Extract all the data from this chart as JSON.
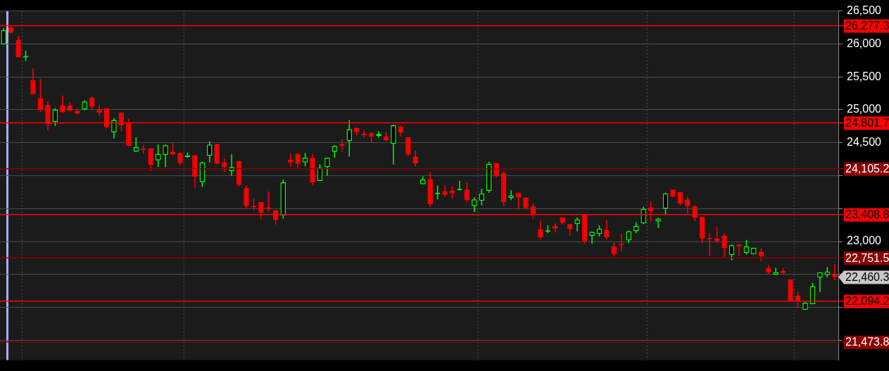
{
  "chart_data": {
    "type": "candlestick",
    "categories": [
      null,
      null,
      null,
      null,
      null,
      null,
      null,
      null,
      null,
      null,
      null,
      null,
      null,
      null,
      null,
      null,
      null,
      null,
      null,
      null,
      null,
      null,
      null,
      null,
      null,
      null,
      null,
      null,
      null,
      null,
      null,
      null,
      null,
      null,
      null,
      null,
      null,
      null,
      null,
      null,
      null,
      null,
      null,
      null,
      null,
      null,
      null,
      null,
      null,
      null,
      null,
      null,
      null,
      null,
      null,
      null,
      null,
      null,
      null,
      null,
      null,
      null,
      null,
      null,
      null,
      null,
      null,
      null,
      null,
      null,
      null,
      null,
      null,
      null,
      null,
      null,
      null,
      null,
      null,
      null,
      null,
      null,
      null,
      null,
      null,
      null,
      null,
      null,
      null,
      null,
      null,
      null,
      null,
      null,
      null,
      null,
      null,
      null,
      null,
      null,
      null,
      null,
      null,
      null,
      null,
      null,
      null,
      null,
      null,
      null,
      null,
      null,
      null,
      null
    ],
    "ohlc": [
      [
        25990,
        26241,
        25990,
        26211
      ],
      [
        26251,
        26274,
        26154,
        26171
      ],
      [
        26060,
        26121,
        25792,
        25799
      ],
      [
        25795,
        25900,
        25740,
        25800
      ],
      [
        25447,
        25628,
        25226,
        25236
      ],
      [
        25176,
        25467,
        24965,
        24995
      ],
      [
        25075,
        25126,
        24683,
        24784
      ],
      [
        24814,
        25025,
        24754,
        25005
      ],
      [
        25065,
        25216,
        24945,
        24965
      ],
      [
        25065,
        25116,
        24975,
        24985
      ],
      [
        24985,
        25015,
        24925,
        24945
      ],
      [
        25005,
        25146,
        24995,
        25126
      ],
      [
        25186,
        25196,
        25005,
        25045
      ],
      [
        25005,
        25075,
        24905,
        24955
      ],
      [
        25025,
        25025,
        24724,
        24734
      ],
      [
        24656,
        24874,
        24563,
        24844
      ],
      [
        24955,
        24965,
        24673,
        24764
      ],
      [
        24794,
        24864,
        24442,
        24452
      ],
      [
        24362,
        24583,
        24362,
        24432
      ],
      [
        24412,
        24462,
        24332,
        24392
      ],
      [
        24412,
        24422,
        24070,
        24161
      ],
      [
        24231,
        24472,
        24131,
        24332
      ],
      [
        24312,
        24472,
        24131,
        24462
      ],
      [
        24362,
        24492,
        24302,
        24322
      ],
      [
        24342,
        24352,
        24161,
        24191
      ],
      [
        24282,
        24352,
        24271,
        24292
      ],
      [
        24312,
        24312,
        23809,
        23980
      ],
      [
        23900,
        24211,
        23829,
        24201
      ],
      [
        24301,
        24523,
        24201,
        24472
      ],
      [
        24482,
        24482,
        24171,
        24181
      ],
      [
        24201,
        24261,
        24060,
        24131
      ],
      [
        24070,
        24322,
        24000,
        24131
      ],
      [
        24221,
        24221,
        23829,
        23859
      ],
      [
        23809,
        23849,
        23498,
        23538
      ],
      [
        23528,
        23658,
        23477,
        23518
      ],
      [
        23598,
        23598,
        23337,
        23437
      ],
      [
        23518,
        23759,
        23457,
        23498
      ],
      [
        23477,
        23477,
        23256,
        23327
      ],
      [
        23397,
        23940,
        23347,
        23899
      ],
      [
        24241,
        24332,
        24131,
        24201
      ],
      [
        24332,
        24332,
        24121,
        24181
      ],
      [
        24201,
        24342,
        24141,
        24271
      ],
      [
        24271,
        24332,
        23859,
        23899
      ],
      [
        23920,
        24171,
        23920,
        24121
      ],
      [
        24131,
        24271,
        24000,
        24271
      ],
      [
        24362,
        24462,
        24271,
        24452
      ],
      [
        24482,
        24553,
        24362,
        24452
      ],
      [
        24523,
        24844,
        24291,
        24704
      ],
      [
        24724,
        24734,
        24613,
        24663
      ],
      [
        24623,
        24694,
        24573,
        24613
      ],
      [
        24643,
        24663,
        24503,
        24593
      ],
      [
        24603,
        24673,
        24573,
        24633
      ],
      [
        24593,
        24663,
        24523,
        24533
      ],
      [
        24482,
        24774,
        24171,
        24764
      ],
      [
        24744,
        24764,
        24593,
        24653
      ],
      [
        24583,
        24583,
        24291,
        24322
      ],
      [
        24291,
        24382,
        24141,
        24181
      ],
      [
        23869,
        23990,
        23869,
        23940
      ],
      [
        23950,
        24050,
        23528,
        23568
      ],
      [
        23719,
        23849,
        23638,
        23729
      ],
      [
        23759,
        23849,
        23678,
        23709
      ],
      [
        23769,
        23839,
        23648,
        23729
      ],
      [
        23779,
        23920,
        23779,
        23789
      ],
      [
        23789,
        23899,
        23588,
        23628
      ],
      [
        23538,
        23668,
        23447,
        23638
      ],
      [
        23618,
        23799,
        23548,
        23729
      ],
      [
        23769,
        24211,
        23739,
        24181
      ],
      [
        24191,
        24191,
        23970,
        23990
      ],
      [
        24040,
        24070,
        23538,
        23598
      ],
      [
        23658,
        23779,
        23628,
        23698
      ],
      [
        23739,
        23739,
        23487,
        23668
      ],
      [
        23668,
        23668,
        23487,
        23508
      ],
      [
        23538,
        23578,
        23337,
        23407
      ],
      [
        23186,
        23317,
        23035,
        23065
      ],
      [
        23146,
        23246,
        23126,
        23156
      ],
      [
        23236,
        23276,
        23136,
        23196
      ],
      [
        23367,
        23367,
        23256,
        23286
      ],
      [
        23266,
        23266,
        23085,
        23186
      ],
      [
        23266,
        23367,
        23156,
        23337
      ],
      [
        23407,
        23407,
        22965,
        23005
      ],
      [
        23085,
        23146,
        22965,
        23146
      ],
      [
        23116,
        23246,
        23075,
        23196
      ],
      [
        23176,
        23327,
        23035,
        23065
      ],
      [
        22925,
        22985,
        22774,
        22804
      ],
      [
        22955,
        23116,
        22844,
        22945
      ],
      [
        23015,
        23166,
        22975,
        23156
      ],
      [
        23156,
        23296,
        23126,
        23236
      ],
      [
        23276,
        23528,
        23266,
        23497
      ],
      [
        23518,
        23608,
        23306,
        23457
      ],
      [
        23306,
        23357,
        23206,
        23347
      ],
      [
        23498,
        23739,
        23407,
        23729
      ],
      [
        23789,
        23789,
        23668,
        23678
      ],
      [
        23749,
        23749,
        23548,
        23578
      ],
      [
        23638,
        23678,
        23427,
        23538
      ],
      [
        23538,
        23548,
        23306,
        23357
      ],
      [
        23377,
        23377,
        22975,
        23045
      ],
      [
        23045,
        23126,
        22784,
        23035
      ],
      [
        23045,
        23216,
        22975,
        23005
      ],
      [
        23085,
        23116,
        22764,
        22905
      ],
      [
        22794,
        22955,
        22714,
        22945
      ],
      [
        22955,
        22965,
        22784,
        22925
      ],
      [
        22824,
        23025,
        22804,
        22925
      ],
      [
        22804,
        22905,
        22804,
        22905
      ],
      [
        22844,
        22894,
        22704,
        22774
      ],
      [
        22593,
        22643,
        22503,
        22533
      ],
      [
        22493,
        22603,
        22493,
        22533
      ],
      [
        22553,
        22593,
        22493,
        22523
      ],
      [
        22422,
        22422,
        22091,
        22101
      ],
      [
        22181,
        22241,
        21990,
        22091
      ],
      [
        21960,
        22080,
        21960,
        22070
      ],
      [
        22050,
        22372,
        22050,
        22322
      ],
      [
        22452,
        22533,
        22231,
        22533
      ],
      [
        22493,
        22613,
        22452,
        22543
      ],
      [
        22503,
        22653,
        22412,
        22460
      ]
    ],
    "ylim": [
      21200,
      26500
    ],
    "yticks": [
      {
        "value": 21500,
        "label": null
      },
      {
        "value": 22000,
        "label": null
      },
      {
        "value": 22500,
        "label": null
      },
      {
        "value": 23000,
        "label": "23,000"
      },
      {
        "value": 23500,
        "label": null
      },
      {
        "value": 24000,
        "label": null
      },
      {
        "value": 24500,
        "label": "24,500"
      },
      {
        "value": 25000,
        "label": "25,000"
      },
      {
        "value": 25500,
        "label": "25,500"
      },
      {
        "value": 26000,
        "label": "26,000"
      },
      {
        "value": 26500,
        "label": "26,500"
      }
    ],
    "grid": "y",
    "tick_labels": "y",
    "legend": false,
    "ref_lines": [
      {
        "axis": "y",
        "value": 26277.3,
        "label": "26,277.3",
        "color": "#ff0000"
      },
      {
        "axis": "y",
        "value": 24801.7,
        "label": "24,801.7",
        "color": "#ff0000"
      },
      {
        "axis": "y",
        "value": 24105.2,
        "label": "24,105.2",
        "color": "#8b0000"
      },
      {
        "axis": "y",
        "value": 23408.8,
        "label": "23,408.8",
        "color": "#ff0000"
      },
      {
        "axis": "y",
        "value": 22751.5,
        "label": "22,751.5",
        "color": "#8b0000"
      },
      {
        "axis": "y",
        "value": 22094.2,
        "label": "22,094.2",
        "color": "#ff0000"
      },
      {
        "axis": "y",
        "value": 21473.8,
        "label": "21,473.8",
        "color": "#8b0000"
      }
    ],
    "annotations": [
      "22,460.3"
    ]
  }
}
